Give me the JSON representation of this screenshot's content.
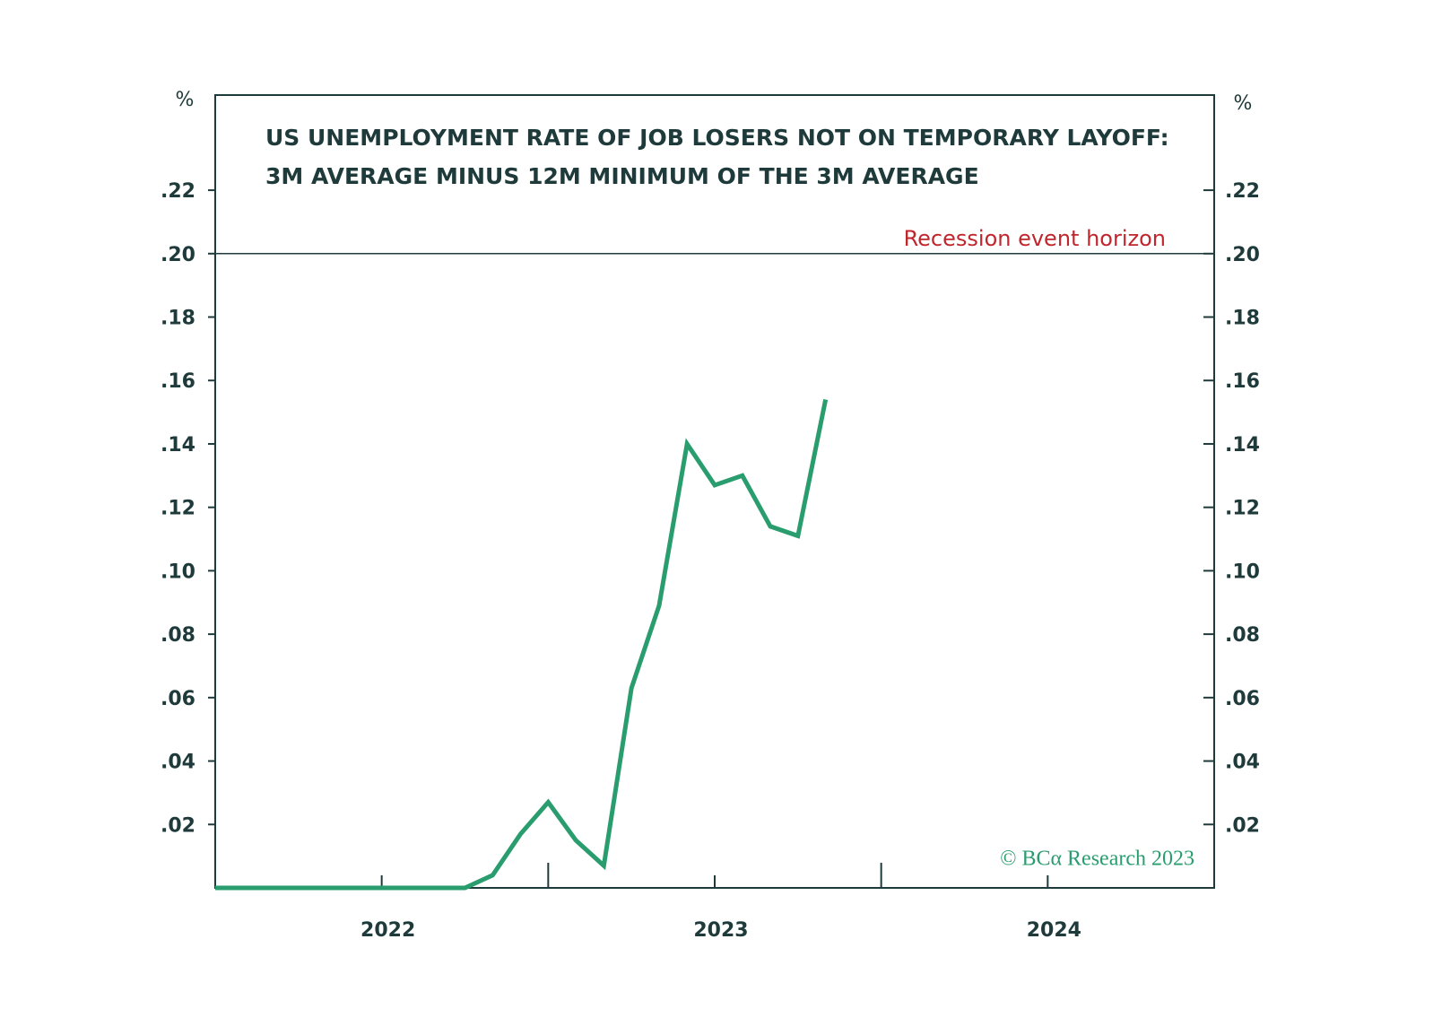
{
  "chart_data": {
    "type": "line",
    "title": [
      "US UNEMPLOYMENT RATE OF JOB LOSERS NOT ON TEMPORARY LAYOFF:",
      "3M AVERAGE MINUS 12M MINIMUM OF THE 3M AVERAGE"
    ],
    "y_unit": "%",
    "y2_unit": "%",
    "x": [
      2022,
      2022.083,
      2022.167,
      2022.25,
      2022.333,
      2022.417,
      2022.5,
      2022.583,
      2022.667,
      2022.75,
      2022.833,
      2022.917,
      2023,
      2023.083,
      2023.167,
      2023.25,
      2023.333,
      2023.417,
      2023.5,
      2023.583,
      2023.667,
      2023.75,
      2023.833
    ],
    "series": [
      {
        "name": "US unemployment rate of job losers not on temporary layoff",
        "color": "#2a9d6f",
        "values": [
          0,
          0,
          0,
          0,
          0,
          0,
          0,
          0,
          0,
          0,
          0.004,
          0.017,
          0.027,
          0.015,
          0.007,
          0.063,
          0.089,
          0.14,
          0.127,
          0.13,
          0.114,
          0.111,
          0.154
        ]
      }
    ],
    "xlim": [
      2022,
      2025
    ],
    "xticks": [
      {
        "value": 2022.5,
        "label": "2022"
      },
      {
        "value": 2023.5,
        "label": "2023"
      },
      {
        "value": 2024.5,
        "label": "2024"
      }
    ],
    "x_tick_marks": [
      2022,
      2022.5,
      2023,
      2023.5,
      2024,
      2024.5,
      2025
    ],
    "ylim": [
      0,
      0.25
    ],
    "yticks": [
      {
        "value": 0.02,
        "label": ".02"
      },
      {
        "value": 0.04,
        "label": ".04"
      },
      {
        "value": 0.06,
        "label": ".06"
      },
      {
        "value": 0.08,
        "label": ".08"
      },
      {
        "value": 0.1,
        "label": ".10"
      },
      {
        "value": 0.12,
        "label": ".12"
      },
      {
        "value": 0.14,
        "label": ".14"
      },
      {
        "value": 0.16,
        "label": ".16"
      },
      {
        "value": 0.18,
        "label": ".18"
      },
      {
        "value": 0.2,
        "label": ".20"
      },
      {
        "value": 0.22,
        "label": ".22"
      }
    ],
    "y2lim": [
      0,
      0.25
    ],
    "y2ticks": [
      {
        "value": 0.02,
        "label": ".02"
      },
      {
        "value": 0.04,
        "label": ".04"
      },
      {
        "value": 0.06,
        "label": ".06"
      },
      {
        "value": 0.08,
        "label": ".08"
      },
      {
        "value": 0.1,
        "label": ".10"
      },
      {
        "value": 0.12,
        "label": ".12"
      },
      {
        "value": 0.14,
        "label": ".14"
      },
      {
        "value": 0.16,
        "label": ".16"
      },
      {
        "value": 0.18,
        "label": ".18"
      },
      {
        "value": 0.2,
        "label": ".20"
      },
      {
        "value": 0.22,
        "label": ".22"
      }
    ],
    "reference_line": {
      "value": 0.2,
      "label": "Recession event horizon",
      "color": "#c0262d"
    },
    "source": "© BCα Research 2023"
  }
}
